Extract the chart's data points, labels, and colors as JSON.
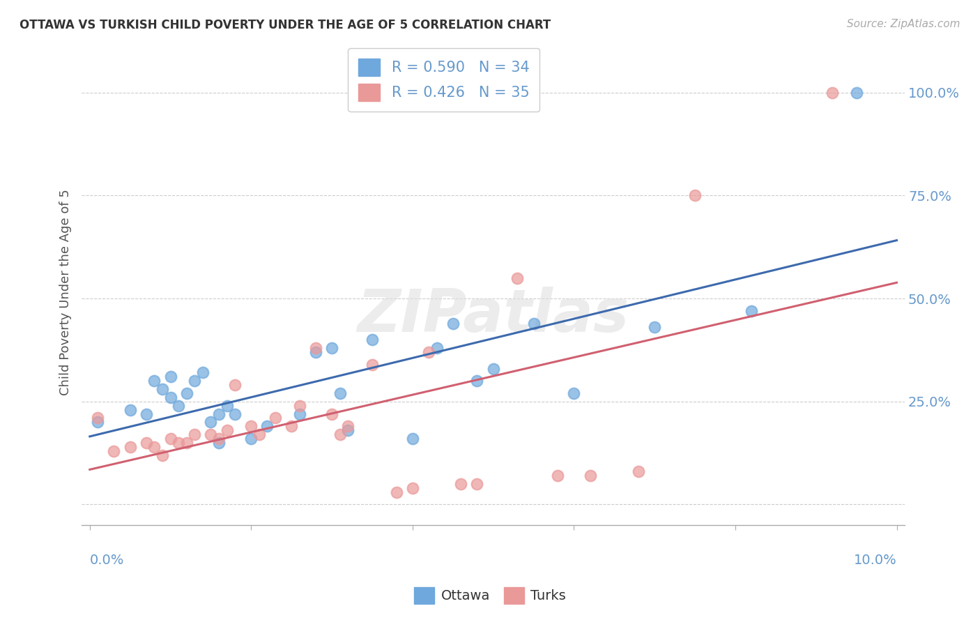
{
  "title": "OTTAWA VS TURKISH CHILD POVERTY UNDER THE AGE OF 5 CORRELATION CHART",
  "source": "Source: ZipAtlas.com",
  "ylabel": "Child Poverty Under the Age of 5",
  "y_ticks": [
    0.0,
    0.25,
    0.5,
    0.75,
    1.0
  ],
  "y_tick_labels": [
    "",
    "25.0%",
    "50.0%",
    "75.0%",
    "100.0%"
  ],
  "x_range": [
    0.0,
    0.1
  ],
  "y_range": [
    -0.05,
    1.08
  ],
  "ottawa_R": 0.59,
  "ottawa_N": 34,
  "turks_R": 0.426,
  "turks_N": 35,
  "ottawa_color": "#6fa8dc",
  "turks_color": "#ea9999",
  "ottawa_line_color": "#3d6aad",
  "turks_line_color": "#d06070",
  "watermark": "ZIPatlas",
  "ottawa_x": [
    0.001,
    0.005,
    0.007,
    0.008,
    0.009,
    0.01,
    0.01,
    0.011,
    0.012,
    0.013,
    0.014,
    0.015,
    0.016,
    0.016,
    0.017,
    0.018,
    0.02,
    0.022,
    0.026,
    0.028,
    0.03,
    0.031,
    0.032,
    0.035,
    0.04,
    0.043,
    0.045,
    0.048,
    0.05,
    0.055,
    0.06,
    0.07,
    0.082,
    0.095
  ],
  "ottawa_y": [
    0.2,
    0.23,
    0.22,
    0.3,
    0.28,
    0.26,
    0.31,
    0.24,
    0.27,
    0.3,
    0.32,
    0.2,
    0.22,
    0.15,
    0.24,
    0.22,
    0.16,
    0.19,
    0.22,
    0.37,
    0.38,
    0.27,
    0.18,
    0.4,
    0.16,
    0.38,
    0.44,
    0.3,
    0.33,
    0.44,
    0.27,
    0.43,
    0.47,
    1.0
  ],
  "turks_x": [
    0.001,
    0.003,
    0.005,
    0.007,
    0.008,
    0.009,
    0.01,
    0.011,
    0.012,
    0.013,
    0.015,
    0.016,
    0.017,
    0.018,
    0.02,
    0.021,
    0.023,
    0.025,
    0.026,
    0.028,
    0.03,
    0.031,
    0.032,
    0.035,
    0.038,
    0.04,
    0.042,
    0.046,
    0.048,
    0.053,
    0.058,
    0.062,
    0.068,
    0.075,
    0.092
  ],
  "turks_y": [
    0.21,
    0.13,
    0.14,
    0.15,
    0.14,
    0.12,
    0.16,
    0.15,
    0.15,
    0.17,
    0.17,
    0.16,
    0.18,
    0.29,
    0.19,
    0.17,
    0.21,
    0.19,
    0.24,
    0.38,
    0.22,
    0.17,
    0.19,
    0.34,
    0.03,
    0.04,
    0.37,
    0.05,
    0.05,
    0.55,
    0.07,
    0.07,
    0.08,
    0.75,
    1.0
  ],
  "background_color": "#ffffff",
  "grid_color": "#cccccc",
  "title_color": "#333333",
  "axis_color": "#6699cc",
  "legend_color": "#6699cc"
}
